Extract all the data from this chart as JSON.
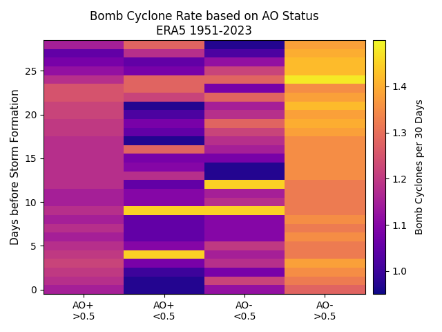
{
  "title_line1": "Bomb Cyclone Rate based on AO Status",
  "title_line2": "ERA5 1951-2023",
  "ylabel": "Days before Storm Formation",
  "colorbar_label": "Bomb Cyclones per 30 Days",
  "xtick_labels": [
    "AO+\n>0.5",
    "AO+\n<0.5",
    "AO-\n<0.5",
    "AO-\n>0.5"
  ],
  "vmin": 0.95,
  "vmax": 1.5,
  "colormap": "plasma",
  "data": [
    [
      1.15,
      0.97,
      1.12,
      1.28
    ],
    [
      1.18,
      0.97,
      1.22,
      1.32
    ],
    [
      1.2,
      1.0,
      1.08,
      1.35
    ],
    [
      1.22,
      1.08,
      1.18,
      1.38
    ],
    [
      1.2,
      1.45,
      1.15,
      1.32
    ],
    [
      1.18,
      1.1,
      1.2,
      1.32
    ],
    [
      1.15,
      1.05,
      1.1,
      1.35
    ],
    [
      1.18,
      1.05,
      1.1,
      1.32
    ],
    [
      1.15,
      1.05,
      1.1,
      1.35
    ],
    [
      1.18,
      1.45,
      1.45,
      1.32
    ],
    [
      1.15,
      1.1,
      1.18,
      1.32
    ],
    [
      1.15,
      1.1,
      1.15,
      1.32
    ],
    [
      1.18,
      1.05,
      1.45,
      1.32
    ],
    [
      1.18,
      1.18,
      0.97,
      1.35
    ],
    [
      1.18,
      1.1,
      0.97,
      1.35
    ],
    [
      1.18,
      1.08,
      1.08,
      1.35
    ],
    [
      1.18,
      1.28,
      1.15,
      1.35
    ],
    [
      1.18,
      0.97,
      1.18,
      1.35
    ],
    [
      1.2,
      1.05,
      1.22,
      1.38
    ],
    [
      1.2,
      1.08,
      1.28,
      1.4
    ],
    [
      1.22,
      1.02,
      1.18,
      1.38
    ],
    [
      1.22,
      0.97,
      1.15,
      1.42
    ],
    [
      1.25,
      1.22,
      1.28,
      1.38
    ],
    [
      1.25,
      1.28,
      1.08,
      1.35
    ],
    [
      1.18,
      1.28,
      1.28,
      1.48
    ],
    [
      1.12,
      1.08,
      1.22,
      1.42
    ],
    [
      1.08,
      1.05,
      1.12,
      1.42
    ],
    [
      1.05,
      1.18,
      1.02,
      1.4
    ],
    [
      1.15,
      1.28,
      0.97,
      1.38
    ]
  ],
  "figsize": [
    6.4,
    4.8
  ],
  "dpi": 100,
  "title_fontsize": 12,
  "ylabel_fontsize": 11,
  "xtick_fontsize": 10,
  "colorbar_ticks": [
    1.0,
    1.1,
    1.2,
    1.3,
    1.4
  ],
  "yticks": [
    0,
    5,
    10,
    15,
    20,
    25
  ]
}
